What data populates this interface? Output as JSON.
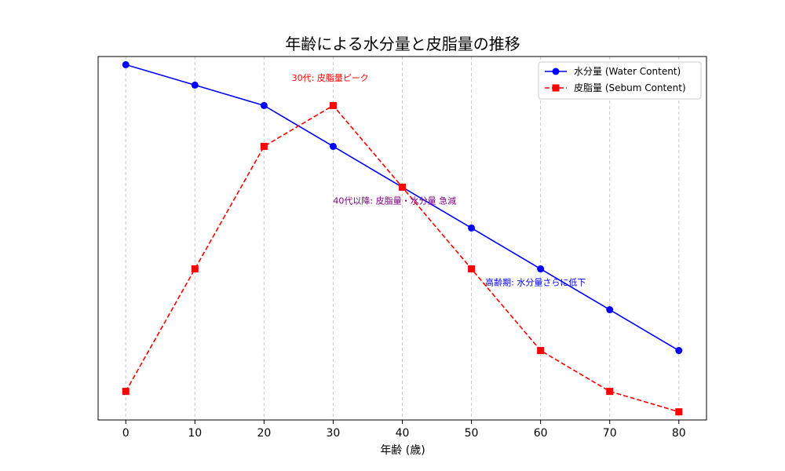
{
  "chart_data": {
    "type": "line",
    "title": "年齢による水分量と皮脂量の推移",
    "xlabel": "年齢 (歳)",
    "ylabel": "",
    "x": [
      0,
      10,
      20,
      30,
      40,
      50,
      60,
      70,
      80
    ],
    "xlim": [
      -4,
      84
    ],
    "ylim": [
      0.3,
      9.2
    ],
    "y_ticks_visible": false,
    "grid": "vertical dashed",
    "legend_position": "top-right",
    "series": [
      {
        "name": "水分量 (Water Content)",
        "values": [
          9.0,
          8.5,
          8.0,
          7.0,
          6.0,
          5.0,
          4.0,
          3.0,
          2.0
        ],
        "color": "#0000ff",
        "style": "solid",
        "marker": "circle"
      },
      {
        "name": "皮脂量 (Sebum Content)",
        "values": [
          1.0,
          4.0,
          7.0,
          8.0,
          6.0,
          4.0,
          2.0,
          1.0,
          0.5
        ],
        "color": "#ff0000",
        "style": "dashed",
        "marker": "square"
      }
    ],
    "annotations": [
      {
        "text": "30代: 皮脂量ピーク",
        "x": 24,
        "y": 8.6,
        "color": "#ff0000"
      },
      {
        "text": "40代以降: 皮脂量・水分量 急減",
        "x": 30,
        "y": 5.6,
        "color": "#800080"
      },
      {
        "text": "高齢期: 水分量さらに低下",
        "x": 52,
        "y": 3.6,
        "color": "#0000ff"
      }
    ]
  }
}
